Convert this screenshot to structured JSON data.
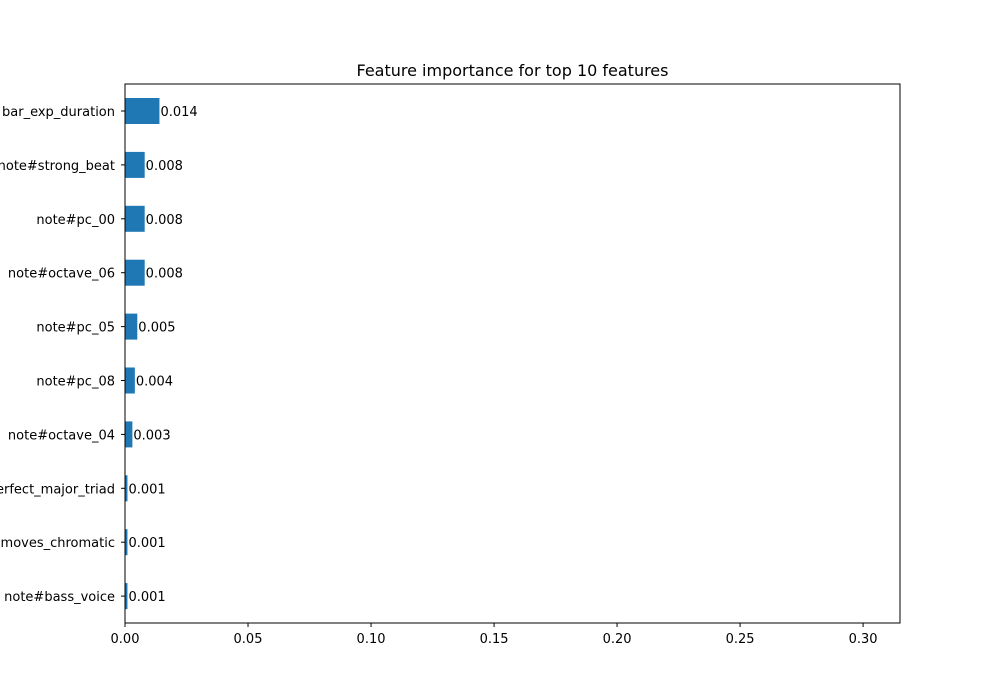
{
  "chart_data": {
    "type": "bar",
    "orientation": "horizontal",
    "title": "Feature importance for top 10 features",
    "xlabel": "",
    "ylabel": "",
    "xlim": [
      0,
      0.315
    ],
    "x_ticks": [
      0.0,
      0.05,
      0.1,
      0.15,
      0.2,
      0.25,
      0.3
    ],
    "x_tick_labels": [
      "0.00",
      "0.05",
      "0.10",
      "0.15",
      "0.20",
      "0.25",
      "0.30"
    ],
    "categories": [
      "bar_exp_duration",
      "note#strong_beat",
      "note#pc_00",
      "note#octave_06",
      "note#pc_05",
      "note#pc_08",
      "note#octave_04",
      "perfect_major_triad",
      "moves_chromatic",
      "note#bass_voice"
    ],
    "values": [
      0.014,
      0.008,
      0.008,
      0.008,
      0.005,
      0.004,
      0.003,
      0.001,
      0.001,
      0.001
    ],
    "value_labels": [
      "0.014",
      "0.008",
      "0.008",
      "0.008",
      "0.005",
      "0.004",
      "0.003",
      "0.001",
      "0.001",
      "0.001"
    ],
    "grid": false,
    "bar_color": "#1f77b4"
  }
}
